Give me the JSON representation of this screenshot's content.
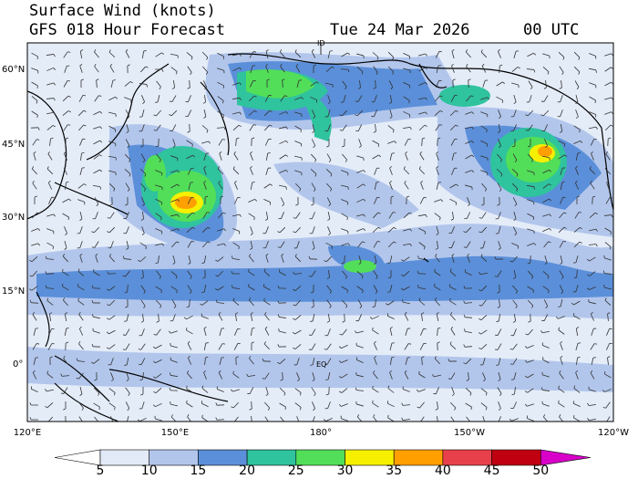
{
  "header": {
    "title": "Surface Wind (knots)",
    "subtitle": "GFS 018 Hour Forecast",
    "date": "Tue 24 Mar 2026",
    "time": "00 UTC"
  },
  "map": {
    "lat_labels": [
      "60°N",
      "45°N",
      "30°N",
      "15°N",
      "0°"
    ],
    "lon_labels": [
      "120°E",
      "150°E",
      "180°",
      "150°W",
      "120°W"
    ],
    "equator_label": "EQ",
    "dateline_label": "ID"
  },
  "colorbar": {
    "labels": [
      5,
      10,
      15,
      20,
      25,
      30,
      35,
      40,
      45,
      50
    ],
    "colors": [
      "#ffffff",
      "#e2eaf8",
      "#b2c6ec",
      "#5b8fd9",
      "#2fc39e",
      "#52de58",
      "#f6f000",
      "#ffa000",
      "#e8404a",
      "#c00010",
      "#d800c8"
    ]
  }
}
